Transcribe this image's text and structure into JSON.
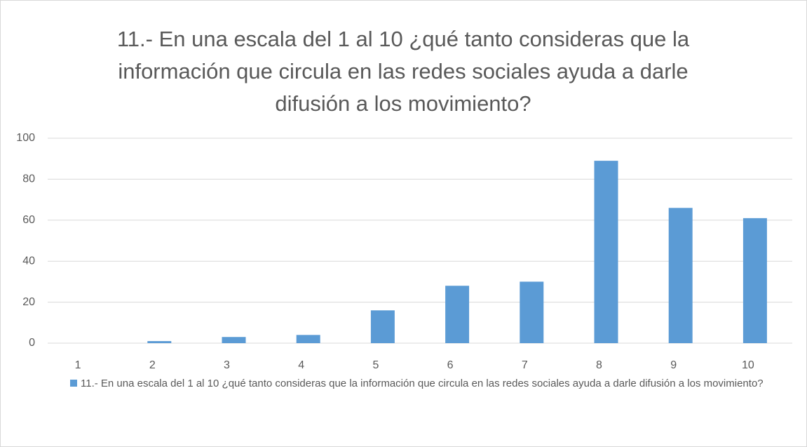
{
  "chart_data": {
    "type": "bar",
    "title": "11.- En una escala del 1 al 10 ¿qué tanto consideras que la información que circula en las redes sociales ayuda a darle difusión a los movimiento?",
    "categories": [
      "1",
      "2",
      "3",
      "4",
      "5",
      "6",
      "7",
      "8",
      "9",
      "10"
    ],
    "series": [
      {
        "name": "11.- En una escala del 1 al 10 ¿qué tanto consideras que la información que circula en las redes sociales ayuda a darle difusión a los movimiento?",
        "color": "#5b9bd5",
        "values": [
          0,
          1,
          3,
          4,
          16,
          28,
          30,
          89,
          66,
          61
        ]
      }
    ],
    "ylim": [
      0,
      100
    ],
    "yticks": [
      0,
      20,
      40,
      60,
      80,
      100
    ],
    "grid": true,
    "legend": "bottom"
  }
}
